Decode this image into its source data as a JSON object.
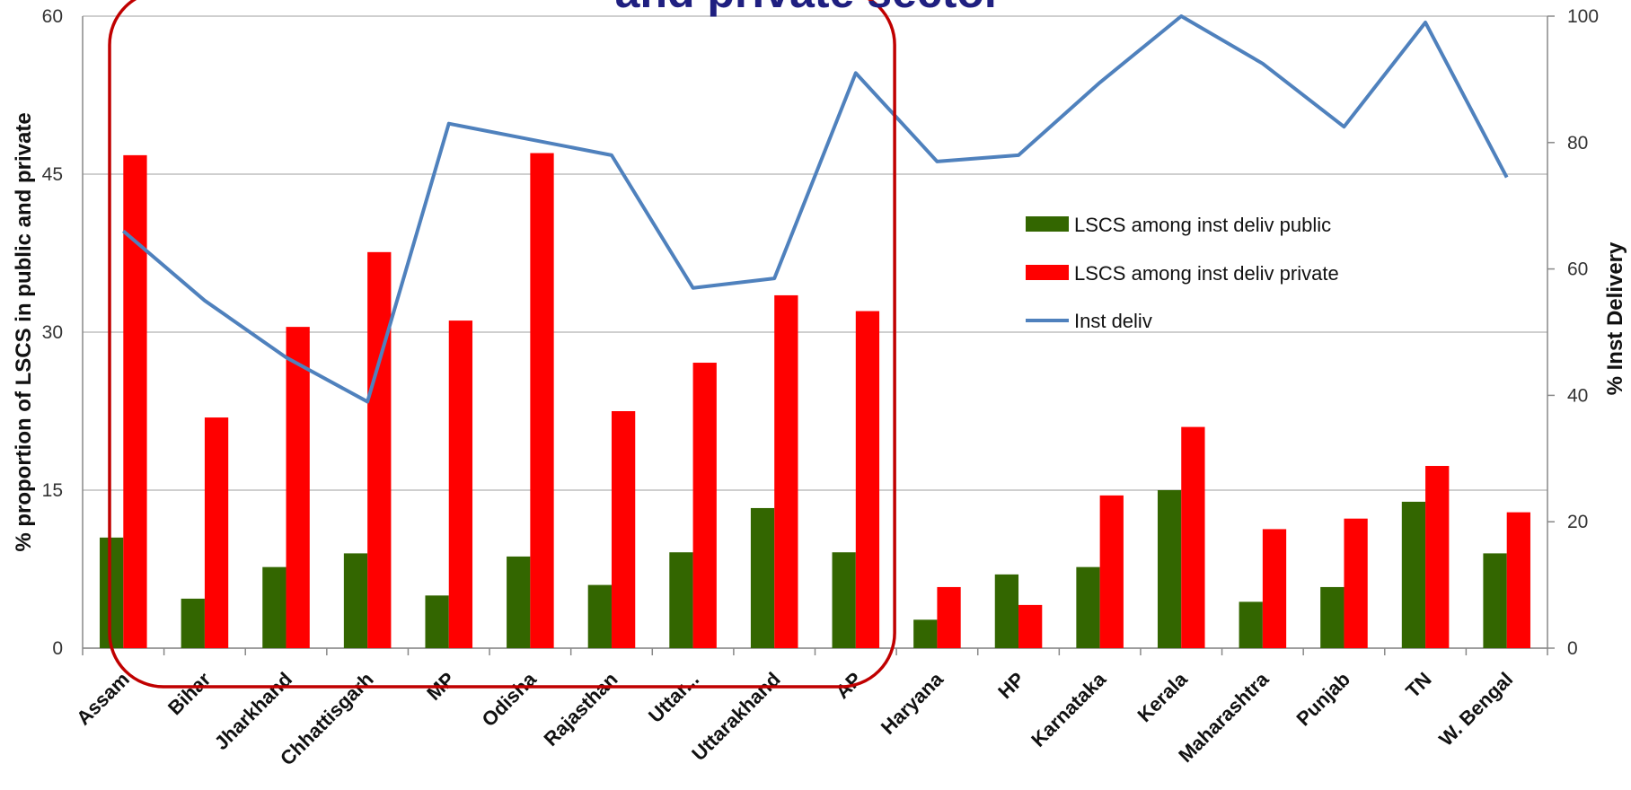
{
  "chart_data": {
    "type": "bar",
    "title": "and private sector",
    "categories": [
      "Assam",
      "Bihar",
      "Jharkhand",
      "Chhattisgarh",
      "MP",
      "Odisha",
      "Rajasthan",
      "Uttar...",
      "Uttarakhand",
      "AP",
      "Haryana",
      "HP",
      "Karnataka",
      "Kerala",
      "Maharashtra",
      "Punjab",
      "TN",
      "W. Bengal"
    ],
    "series": [
      {
        "name": "LSCS among inst deliv public",
        "type": "bar",
        "axis": "left",
        "color": "#336600",
        "values": [
          10.5,
          4.7,
          7.7,
          9.0,
          5.0,
          8.7,
          6.0,
          9.1,
          13.3,
          9.1,
          2.7,
          7.0,
          7.7,
          15.0,
          4.4,
          5.8,
          13.9,
          9.0
        ]
      },
      {
        "name": "LSCS among inst deliv private",
        "type": "bar",
        "axis": "left",
        "color": "#ff0000",
        "values": [
          46.8,
          21.9,
          30.5,
          37.6,
          31.1,
          47.0,
          22.5,
          27.1,
          33.5,
          32.0,
          5.8,
          4.1,
          14.5,
          21.0,
          11.3,
          12.3,
          17.3,
          12.9
        ]
      },
      {
        "name": "Inst deliv",
        "type": "line",
        "axis": "right",
        "color": "#4f81bd",
        "values": [
          66,
          55,
          46,
          39,
          83,
          80.5,
          78,
          57,
          58.5,
          91,
          77,
          78,
          89.5,
          100,
          92.5,
          82.5,
          99,
          74.5
        ]
      }
    ],
    "ylabel": "% proportion of LSCS in public and private",
    "y2label": "% Inst Delivery",
    "ylim": [
      0,
      60
    ],
    "y2lim": [
      0,
      100
    ],
    "yticks": [
      0,
      15,
      30,
      45,
      60
    ],
    "y2ticks": [
      0,
      20,
      40,
      60,
      80,
      100
    ],
    "grid": true,
    "legend_position": "right-center",
    "highlight": {
      "type": "rounded-rectangle",
      "from_category": "Assam",
      "to_category": "AP",
      "color": "#c00000"
    }
  }
}
